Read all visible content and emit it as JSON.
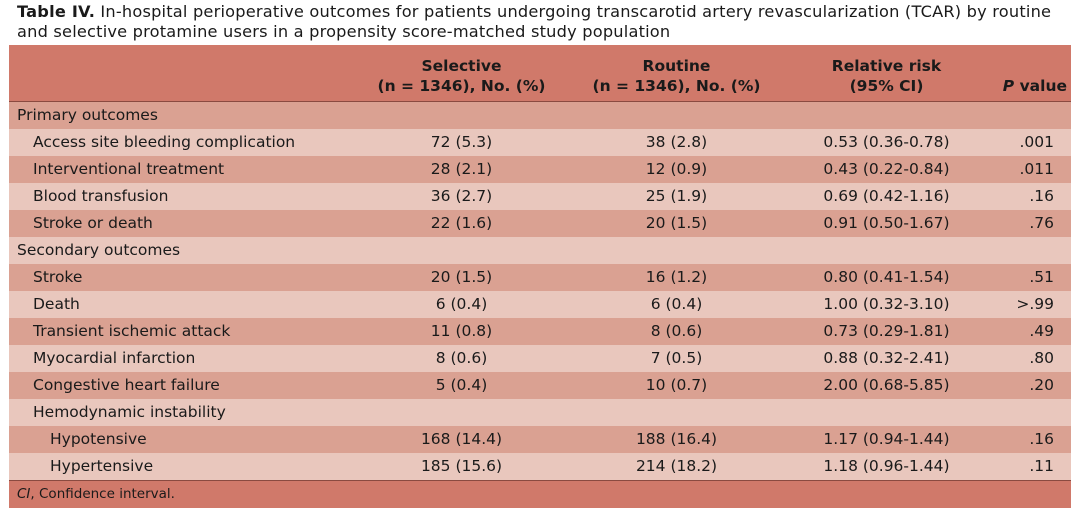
{
  "caption": {
    "label": "Table IV.",
    "text": "In-hospital perioperative outcomes for patients undergoing transcarotid artery revascularization (TCAR) by routine and selective protamine users in a propensity score-matched study population"
  },
  "header": {
    "selective_l1": "Selective",
    "selective_l2": "(n = 1346), No. (%)",
    "routine_l1": "Routine",
    "routine_l2": "(n = 1346), No. (%)",
    "rr_l1": "Relative risk",
    "rr_l2": "(95% CI)",
    "p_italic": "P",
    "p_rest": " value"
  },
  "sections": {
    "primary": "Primary outcomes",
    "secondary": "Secondary outcomes",
    "hemodynamic": "Hemodynamic instability"
  },
  "rows": [
    {
      "name": "Access site bleeding complication",
      "selective": "72 (5.3)",
      "routine": "38 (2.8)",
      "rr": "0.53 (0.36-0.78)",
      "p": ".001"
    },
    {
      "name": "Interventional treatment",
      "selective": "28 (2.1)",
      "routine": "12 (0.9)",
      "rr": "0.43 (0.22-0.84)",
      "p": ".011"
    },
    {
      "name": "Blood transfusion",
      "selective": "36 (2.7)",
      "routine": "25 (1.9)",
      "rr": "0.69 (0.42-1.16)",
      "p": ".16"
    },
    {
      "name": "Stroke or death",
      "selective": "22 (1.6)",
      "routine": "20 (1.5)",
      "rr": "0.91 (0.50-1.67)",
      "p": ".76"
    },
    {
      "name": "Stroke",
      "selective": "20 (1.5)",
      "routine": "16 (1.2)",
      "rr": "0.80 (0.41-1.54)",
      "p": ".51"
    },
    {
      "name": "Death",
      "selective": "6 (0.4)",
      "routine": "6 (0.4)",
      "rr": "1.00 (0.32-3.10)",
      "p": ">.99"
    },
    {
      "name": "Transient ischemic attack",
      "selective": "11 (0.8)",
      "routine": "8 (0.6)",
      "rr": "0.73 (0.29-1.81)",
      "p": ".49"
    },
    {
      "name": "Myocardial infarction",
      "selective": "8 (0.6)",
      "routine": "7 (0.5)",
      "rr": "0.88 (0.32-2.41)",
      "p": ".80"
    },
    {
      "name": "Congestive heart failure",
      "selective": "5 (0.4)",
      "routine": "10 (0.7)",
      "rr": "2.00 (0.68-5.85)",
      "p": ".20"
    },
    {
      "name": "Hypotensive",
      "selective": "168 (14.4)",
      "routine": "188 (16.4)",
      "rr": "1.17 (0.94-1.44)",
      "p": ".16"
    },
    {
      "name": "Hypertensive",
      "selective": "185 (15.6)",
      "routine": "214 (18.2)",
      "rr": "1.18 (0.96-1.44)",
      "p": ".11"
    }
  ],
  "footnote": {
    "abbr": "CI",
    "text": ", Confidence interval."
  },
  "colors": {
    "header_bg": "#d0796a",
    "row_dark": "#daa192",
    "row_light": "#e9c7bd"
  }
}
